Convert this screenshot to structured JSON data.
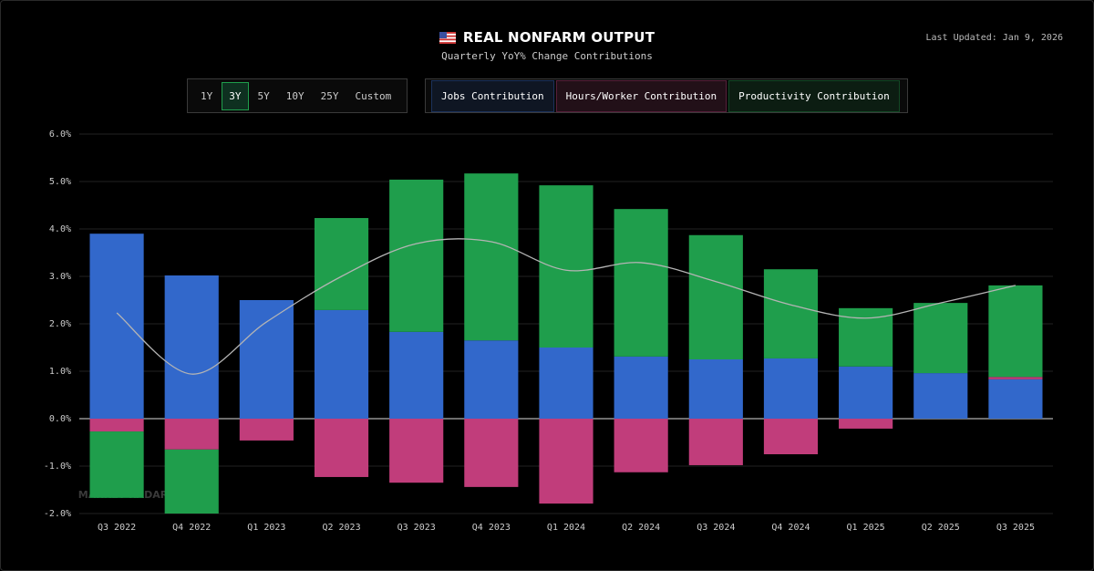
{
  "header": {
    "title": "REAL NONFARM OUTPUT",
    "subtitle": "Quarterly YoY% Change Contributions",
    "last_updated": "Last Updated: Jan 9, 2026"
  },
  "range_options": [
    "1Y",
    "3Y",
    "5Y",
    "10Y",
    "25Y",
    "Custom"
  ],
  "selected_range": "3Y",
  "watermark": "MARKET RADAR",
  "chart_data": {
    "type": "bar",
    "categories": [
      "Q3 2022",
      "Q4 2022",
      "Q1 2023",
      "Q2 2023",
      "Q3 2023",
      "Q4 2023",
      "Q1 2024",
      "Q2 2024",
      "Q3 2024",
      "Q4 2024",
      "Q1 2025",
      "Q2 2025",
      "Q3 2025"
    ],
    "series": [
      {
        "name": "Jobs Contribution",
        "color": "#3268cb",
        "values": [
          3.9,
          3.02,
          2.5,
          2.29,
          1.83,
          1.65,
          1.5,
          1.31,
          1.25,
          1.27,
          1.1,
          0.96,
          0.83
        ]
      },
      {
        "name": "Hours/Worker Contribution",
        "color": "#c13d7b",
        "values": [
          -0.27,
          -0.65,
          -0.46,
          -1.23,
          -1.35,
          -1.44,
          -1.79,
          -1.13,
          -0.98,
          -0.75,
          -0.21,
          0,
          0.05
        ]
      },
      {
        "name": "Productivity Contribution",
        "color": "#1f9e4c",
        "values": [
          -1.4,
          -1.43,
          0,
          1.94,
          3.21,
          3.52,
          3.42,
          3.11,
          2.62,
          1.88,
          1.23,
          1.48,
          1.93
        ]
      }
    ],
    "line": {
      "color": "#b4b4b4",
      "values": [
        2.23,
        0.94,
        2.04,
        3.0,
        3.69,
        3.73,
        3.13,
        3.29,
        2.89,
        2.4,
        2.12,
        2.44,
        2.81
      ]
    },
    "stacked": true,
    "ylim": [
      -2,
      6
    ],
    "yticks": [
      {
        "value": -2,
        "label": "-2.0%"
      },
      {
        "value": -1,
        "label": "-1.0%"
      },
      {
        "value": 0,
        "label": "0.0%"
      },
      {
        "value": 1,
        "label": "1.0%"
      },
      {
        "value": 2,
        "label": "2.0%"
      },
      {
        "value": 3,
        "label": "3.0%"
      },
      {
        "value": 4,
        "label": "4.0%"
      },
      {
        "value": 5,
        "label": "5.0%"
      },
      {
        "value": 6,
        "label": "6.0%"
      }
    ],
    "grid": true
  }
}
